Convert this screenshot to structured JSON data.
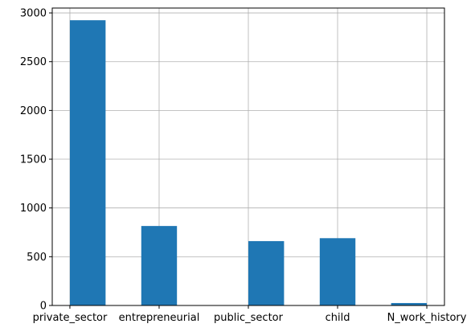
{
  "chart_data": {
    "type": "bar",
    "categories": [
      "private_sector",
      "entrepreneurial",
      "public_sector",
      "child",
      "N_work_history"
    ],
    "values": [
      2925,
      815,
      660,
      690,
      25
    ],
    "ylim": [
      0,
      3050
    ],
    "yticks": [
      0,
      500,
      1000,
      1500,
      2000,
      2500,
      3000
    ],
    "grid": true,
    "bar_color": "#1f77b4",
    "grid_color": "#b0b0b0"
  }
}
